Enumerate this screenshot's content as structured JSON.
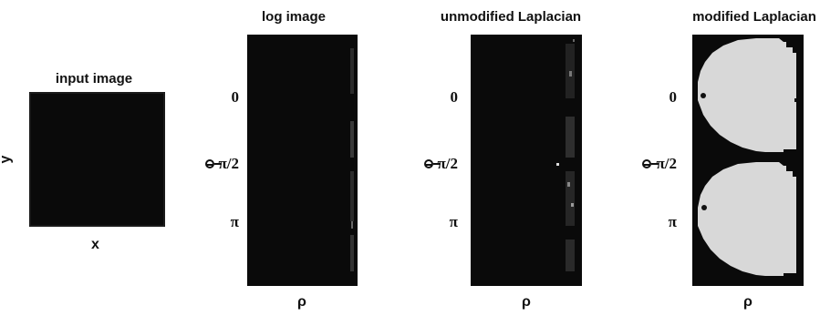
{
  "panels": [
    {
      "id": "input",
      "title": "input image",
      "xlabel": "x",
      "ylabel": "y"
    },
    {
      "id": "log",
      "title": "log image",
      "xlabel": "ρ",
      "yticks": [
        "0",
        "π/2",
        "π"
      ]
    },
    {
      "id": "unmod",
      "title": "unmodified Laplacian",
      "xlabel": "ρ",
      "yticks": [
        "0",
        "π/2",
        "π"
      ]
    },
    {
      "id": "mod",
      "title": "modified Laplacian",
      "xlabel": "ρ",
      "yticks": [
        "0",
        "π/2",
        "π"
      ]
    }
  ],
  "colors": {
    "image_background": "#0a0a0a",
    "bright_region": "#d8d8d8",
    "text": "#111111"
  }
}
